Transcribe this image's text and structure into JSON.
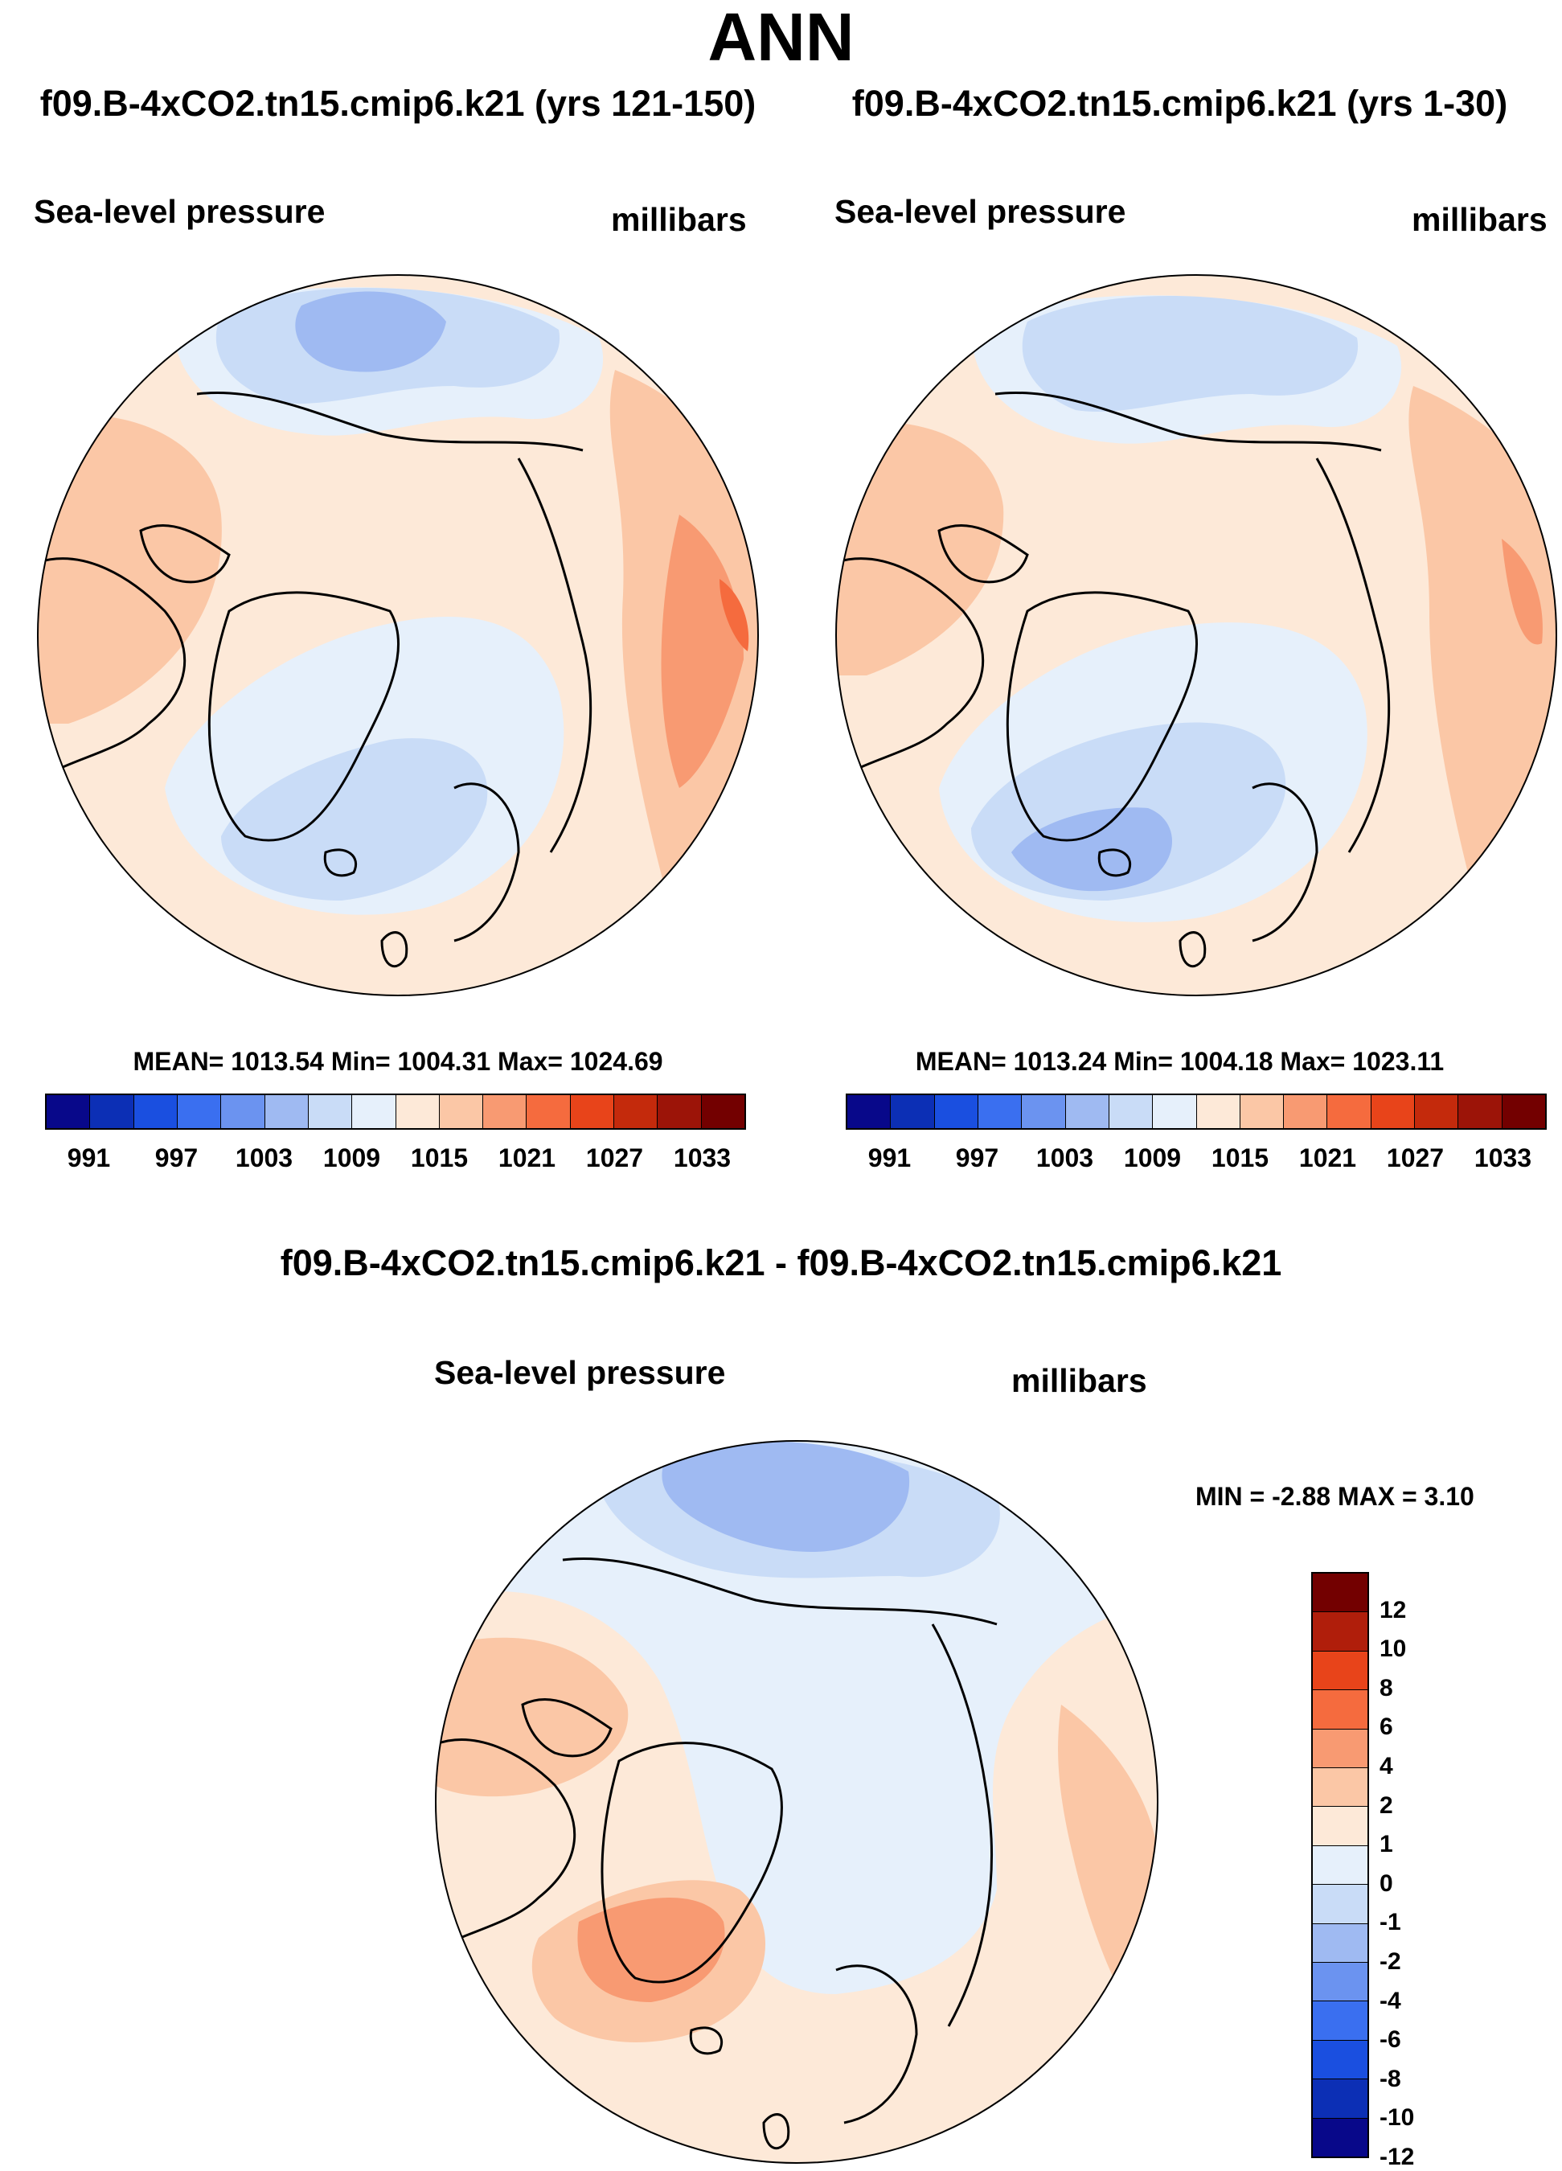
{
  "title": "ANN",
  "panels": [
    {
      "run_title": "f09.B-4xCO2.tn15.cmip6.k21 (yrs 121-150)",
      "variable": "Sea-level pressure",
      "units": "millibars",
      "stats": "MEAN= 1013.54  Min= 1004.31  Max= 1024.69"
    },
    {
      "run_title": "f09.B-4xCO2.tn15.cmip6.k21 (yrs 1-30)",
      "variable": "Sea-level pressure",
      "units": "millibars",
      "stats": "MEAN= 1013.24  Min= 1004.18  Max= 1023.11"
    }
  ],
  "diff_panel": {
    "run_title": "f09.B-4xCO2.tn15.cmip6.k21 - f09.B-4xCO2.tn15.cmip6.k21",
    "variable": "Sea-level pressure",
    "units": "millibars",
    "stats": "MIN =  -2.88 MAX =   3.10"
  },
  "colorbar": {
    "colors": [
      "#08088a",
      "#0c2fb5",
      "#1a4fe0",
      "#3a6ff0",
      "#6b93f0",
      "#9fbaf2",
      "#c9dcf7",
      "#e6f0fb",
      "#fde9d8",
      "#fbc7a6",
      "#f89a72",
      "#f56b3e",
      "#e8441a",
      "#c42a0c",
      "#9c1408",
      "#730000"
    ],
    "tick_labels": [
      "991",
      "997",
      "1003",
      "1009",
      "1015",
      "1021",
      "1027",
      "1033"
    ]
  },
  "diff_colorbar": {
    "colors": [
      "#730000",
      "#b01e0b",
      "#e8441a",
      "#f56b3e",
      "#f89a72",
      "#fbc7a6",
      "#fde9d8",
      "#e6f0fb",
      "#c9dcf7",
      "#9fbaf2",
      "#6b93f0",
      "#3a6ff0",
      "#1a4fe0",
      "#0c2fb5",
      "#08088a"
    ],
    "tick_labels": [
      "12",
      "10",
      "8",
      "6",
      "4",
      "2",
      "1",
      "0",
      "-1",
      "-2",
      "-4",
      "-6",
      "-8",
      "-10",
      "-12"
    ]
  }
}
